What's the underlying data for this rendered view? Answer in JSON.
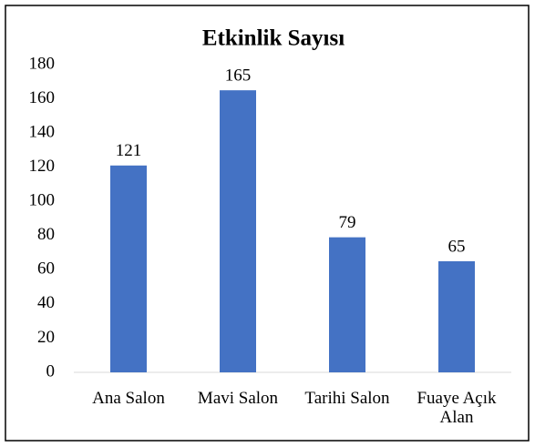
{
  "chart_data": {
    "type": "bar",
    "title": "Etkinlik Sayısı",
    "categories": [
      "Ana Salon",
      "Mavi Salon",
      "Tarihi Salon",
      "Fuaye Açık Alan"
    ],
    "values": [
      121,
      165,
      79,
      65
    ],
    "color": "#4472c4",
    "ylim": [
      0,
      180
    ],
    "yticks": [
      0,
      20,
      40,
      60,
      80,
      100,
      120,
      140,
      160,
      180
    ],
    "grid": false
  }
}
